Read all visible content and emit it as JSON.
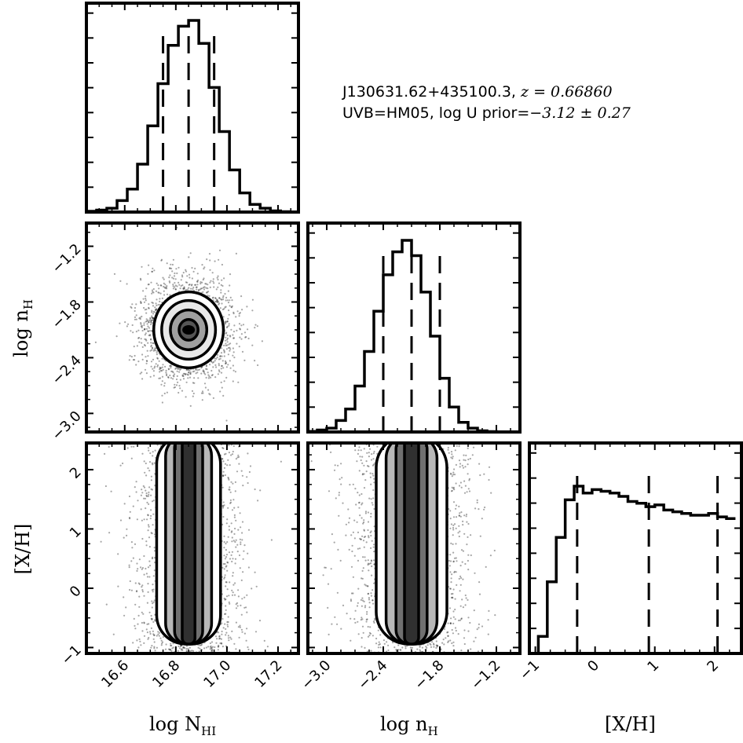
{
  "annotation": {
    "object": "J130631.62+435100.3,",
    "redshift": "z = 0.66860",
    "uvb": "UVB=HM05, log U prior=",
    "prior": "−3.12 ± 0.27"
  },
  "chart_data": {
    "type": "corner",
    "parameters": [
      {
        "key": "logNHI",
        "label": "log N_HI",
        "range": [
          16.45,
          17.28
        ],
        "ticks": [
          "16.6",
          "16.8",
          "17.0",
          "17.2"
        ],
        "tick_values": [
          16.6,
          16.8,
          17.0,
          17.2
        ]
      },
      {
        "key": "lognH",
        "label": "log n_H",
        "range": [
          -3.2,
          -0.95
        ],
        "ticks": [
          "−3.0",
          "−2.4",
          "−1.8",
          "−1.2"
        ],
        "tick_values": [
          -3.0,
          -2.4,
          -1.8,
          -1.2
        ]
      },
      {
        "key": "XH",
        "label": "[X/H]",
        "range": [
          -1.1,
          2.45
        ],
        "ticks": [
          "−1",
          "0",
          "1",
          "2"
        ],
        "tick_values": [
          -1,
          0,
          1,
          2
        ]
      }
    ],
    "y_tick_labels": {
      "lognH": [
        "−1.2",
        "−1.8",
        "−2.4",
        "−3.0"
      ],
      "XH": [
        "2",
        "1",
        "0",
        "−1"
      ]
    },
    "histograms": {
      "logNHI": {
        "bin_edges": [
          16.45,
          16.49,
          16.53,
          16.57,
          16.61,
          16.65,
          16.69,
          16.73,
          16.77,
          16.81,
          16.85,
          16.89,
          16.93,
          16.97,
          17.01,
          17.05,
          17.09,
          17.13,
          17.17,
          17.21,
          17.25
        ],
        "counts": [
          0.4,
          1,
          2,
          6,
          12,
          25,
          45,
          67,
          87,
          97,
          100,
          88,
          65,
          42,
          22,
          10,
          4,
          2,
          0.6,
          0.2
        ],
        "quantiles": [
          16.75,
          16.85,
          16.95
        ]
      },
      "lognH": {
        "bin_edges": [
          -3.2,
          -3.1,
          -3.0,
          -2.9,
          -2.8,
          -2.7,
          -2.6,
          -2.5,
          -2.4,
          -2.3,
          -2.2,
          -2.1,
          -2.0,
          -1.9,
          -1.8,
          -1.7,
          -1.6,
          -1.5,
          -1.4,
          -1.3,
          -1.2,
          -1.1,
          -1.0
        ],
        "counts": [
          0.3,
          1,
          2,
          6,
          12,
          24,
          42,
          63,
          82,
          94,
          100,
          92,
          73,
          50,
          28,
          13,
          5,
          2,
          0.6,
          0.2,
          0.1,
          0
        ],
        "quantiles": [
          -2.4,
          -2.1,
          -1.8
        ]
      },
      "XH": {
        "bin_edges": [
          -1.1,
          -0.95,
          -0.8,
          -0.65,
          -0.5,
          -0.35,
          -0.2,
          -0.05,
          0.1,
          0.25,
          0.4,
          0.55,
          0.7,
          0.85,
          1.0,
          1.15,
          1.3,
          1.45,
          1.6,
          1.75,
          1.9,
          2.05,
          2.2,
          2.35
        ],
        "counts": [
          0,
          10,
          42,
          68,
          90,
          98,
          94,
          96,
          95,
          94,
          92,
          89,
          88,
          86,
          87,
          84,
          83,
          82,
          81,
          81,
          82,
          80,
          79
        ],
        "quantiles": [
          -0.3,
          0.9,
          2.05
        ]
      }
    },
    "hist2d": {
      "lognH_vs_logNHI": {
        "center": [
          16.85,
          -2.1
        ],
        "sigma": [
          0.1,
          0.3
        ],
        "levels": [
          0.5,
          1.0,
          1.5,
          2.0
        ]
      },
      "XH_vs_logNHI": {
        "center": [
          16.85,
          0.9
        ],
        "sigma": [
          0.1,
          1.0
        ]
      },
      "XH_vs_lognH": {
        "center": [
          -2.1,
          0.9
        ],
        "sigma": [
          0.3,
          1.0
        ]
      }
    },
    "axis_labels": {
      "x": [
        "log N",
        "log n",
        "[X/H]"
      ],
      "x_sub": [
        "HI",
        "H",
        ""
      ],
      "y": [
        "log n",
        "[X/H]"
      ],
      "y_sub": [
        "H",
        ""
      ]
    }
  }
}
